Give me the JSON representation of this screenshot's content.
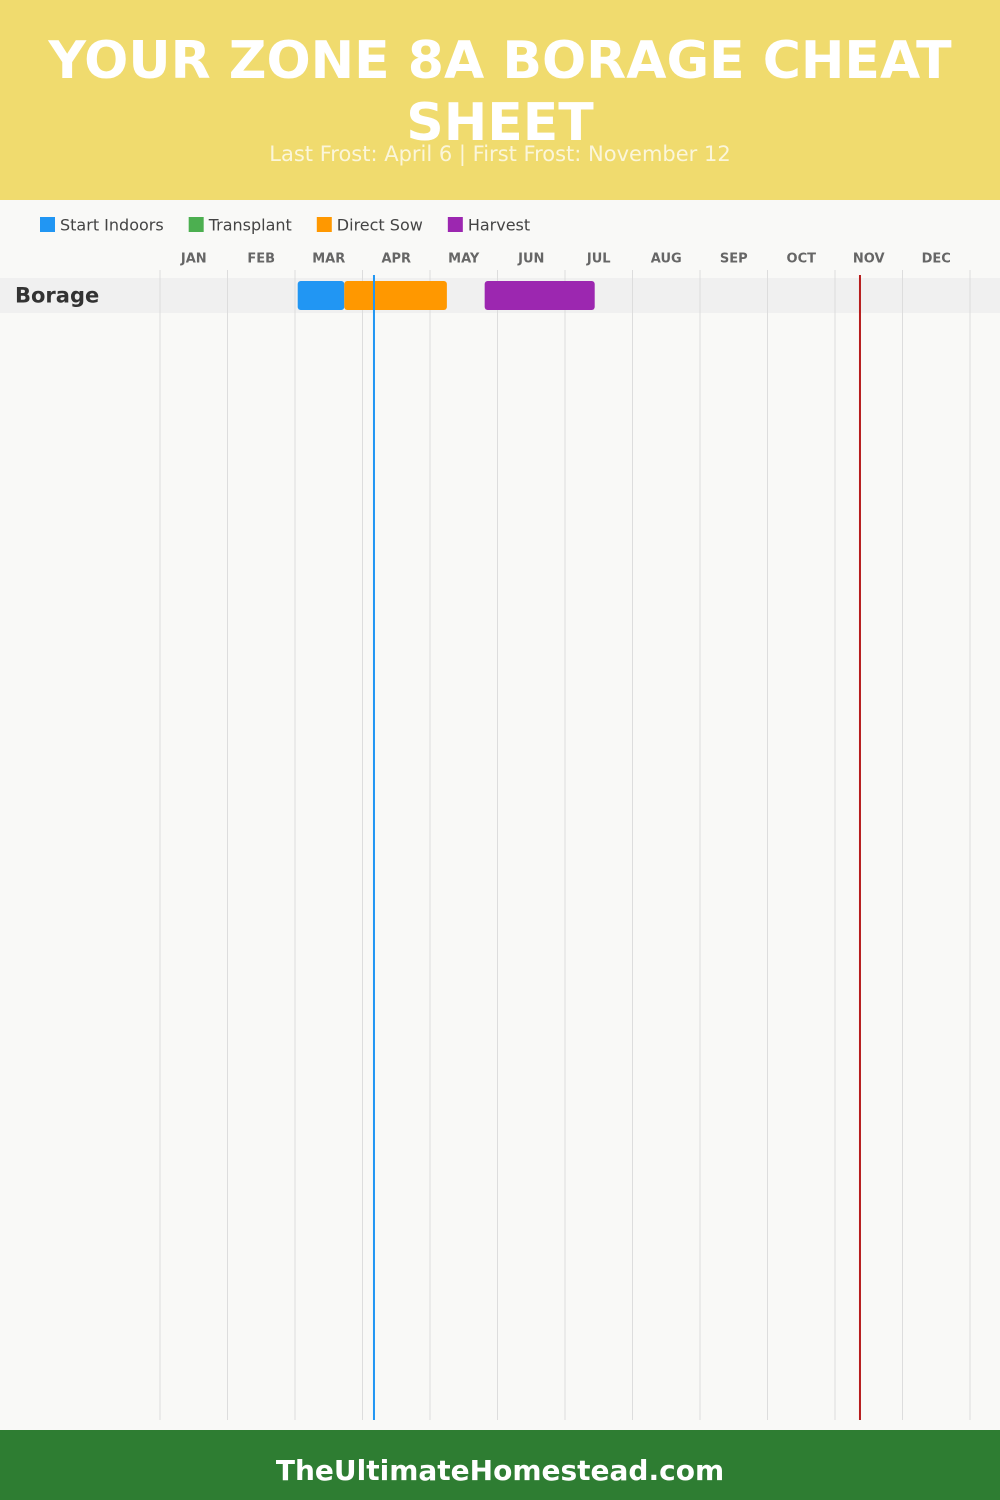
{
  "chart_data": {
    "type": "gantt",
    "title": "YOUR ZONE 8A BORAGE CHEAT SHEET",
    "subtitle": "Last Frost: April 6 | First Frost: November 12",
    "categories": [
      "Borage"
    ],
    "series": [
      {
        "name": "Start Indoors",
        "color": "#2196f3",
        "values": [
          [
            2.04,
            2.73
          ]
        ]
      },
      {
        "name": "Transplant",
        "color": "#4caf50",
        "values": [
          null
        ]
      },
      {
        "name": "Direct Sow",
        "color": "#ff9800",
        "values": [
          [
            2.73,
            4.25
          ]
        ]
      },
      {
        "name": "Harvest",
        "color": "#9c27b0",
        "values": [
          [
            4.81,
            6.44
          ]
        ]
      }
    ],
    "xlim": [
      0,
      12
    ],
    "xticks": [
      {
        "value": 0.5,
        "label": "JAN"
      },
      {
        "value": 1.5,
        "label": "FEB"
      },
      {
        "value": 2.5,
        "label": "MAR"
      },
      {
        "value": 3.5,
        "label": "APR"
      },
      {
        "value": 4.5,
        "label": "MAY"
      },
      {
        "value": 5.5,
        "label": "JUN"
      },
      {
        "value": 6.5,
        "label": "JUL"
      },
      {
        "value": 7.5,
        "label": "AUG"
      },
      {
        "value": 8.5,
        "label": "SEP"
      },
      {
        "value": 9.5,
        "label": "OCT"
      },
      {
        "value": 10.5,
        "label": "NOV"
      },
      {
        "value": 11.5,
        "label": "DEC"
      }
    ],
    "xgrid": [
      0,
      1,
      2,
      3,
      4,
      5,
      6,
      7,
      8,
      9,
      10,
      11,
      12
    ],
    "frost_lines": [
      {
        "value": 3.17,
        "color": "#2196f3"
      },
      {
        "value": 10.37,
        "color": "#b71c1c"
      }
    ]
  },
  "footer": "TheUltimateHomestead.com"
}
